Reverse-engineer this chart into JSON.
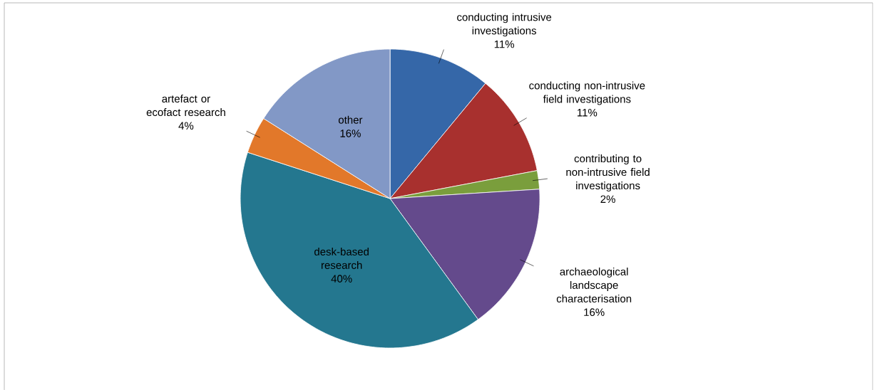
{
  "chart_data": {
    "type": "pie",
    "categories": [
      "conducting intrusive investigations",
      "conducting non-intrusive field investigations",
      "contributing to non-intrusive field investigations",
      "archaeological landscape characterisation",
      "desk-based research",
      "artefact or ecofact research",
      "other"
    ],
    "values": [
      11,
      11,
      2,
      16,
      40,
      4,
      16
    ],
    "colors": [
      "#3567a8",
      "#a8302e",
      "#7a9e3c",
      "#644a8c",
      "#24778f",
      "#e2782a",
      "#8298c6"
    ],
    "value_labels": [
      "11%",
      "11%",
      "2%",
      "16%",
      "40%",
      "4%",
      "16%"
    ]
  }
}
